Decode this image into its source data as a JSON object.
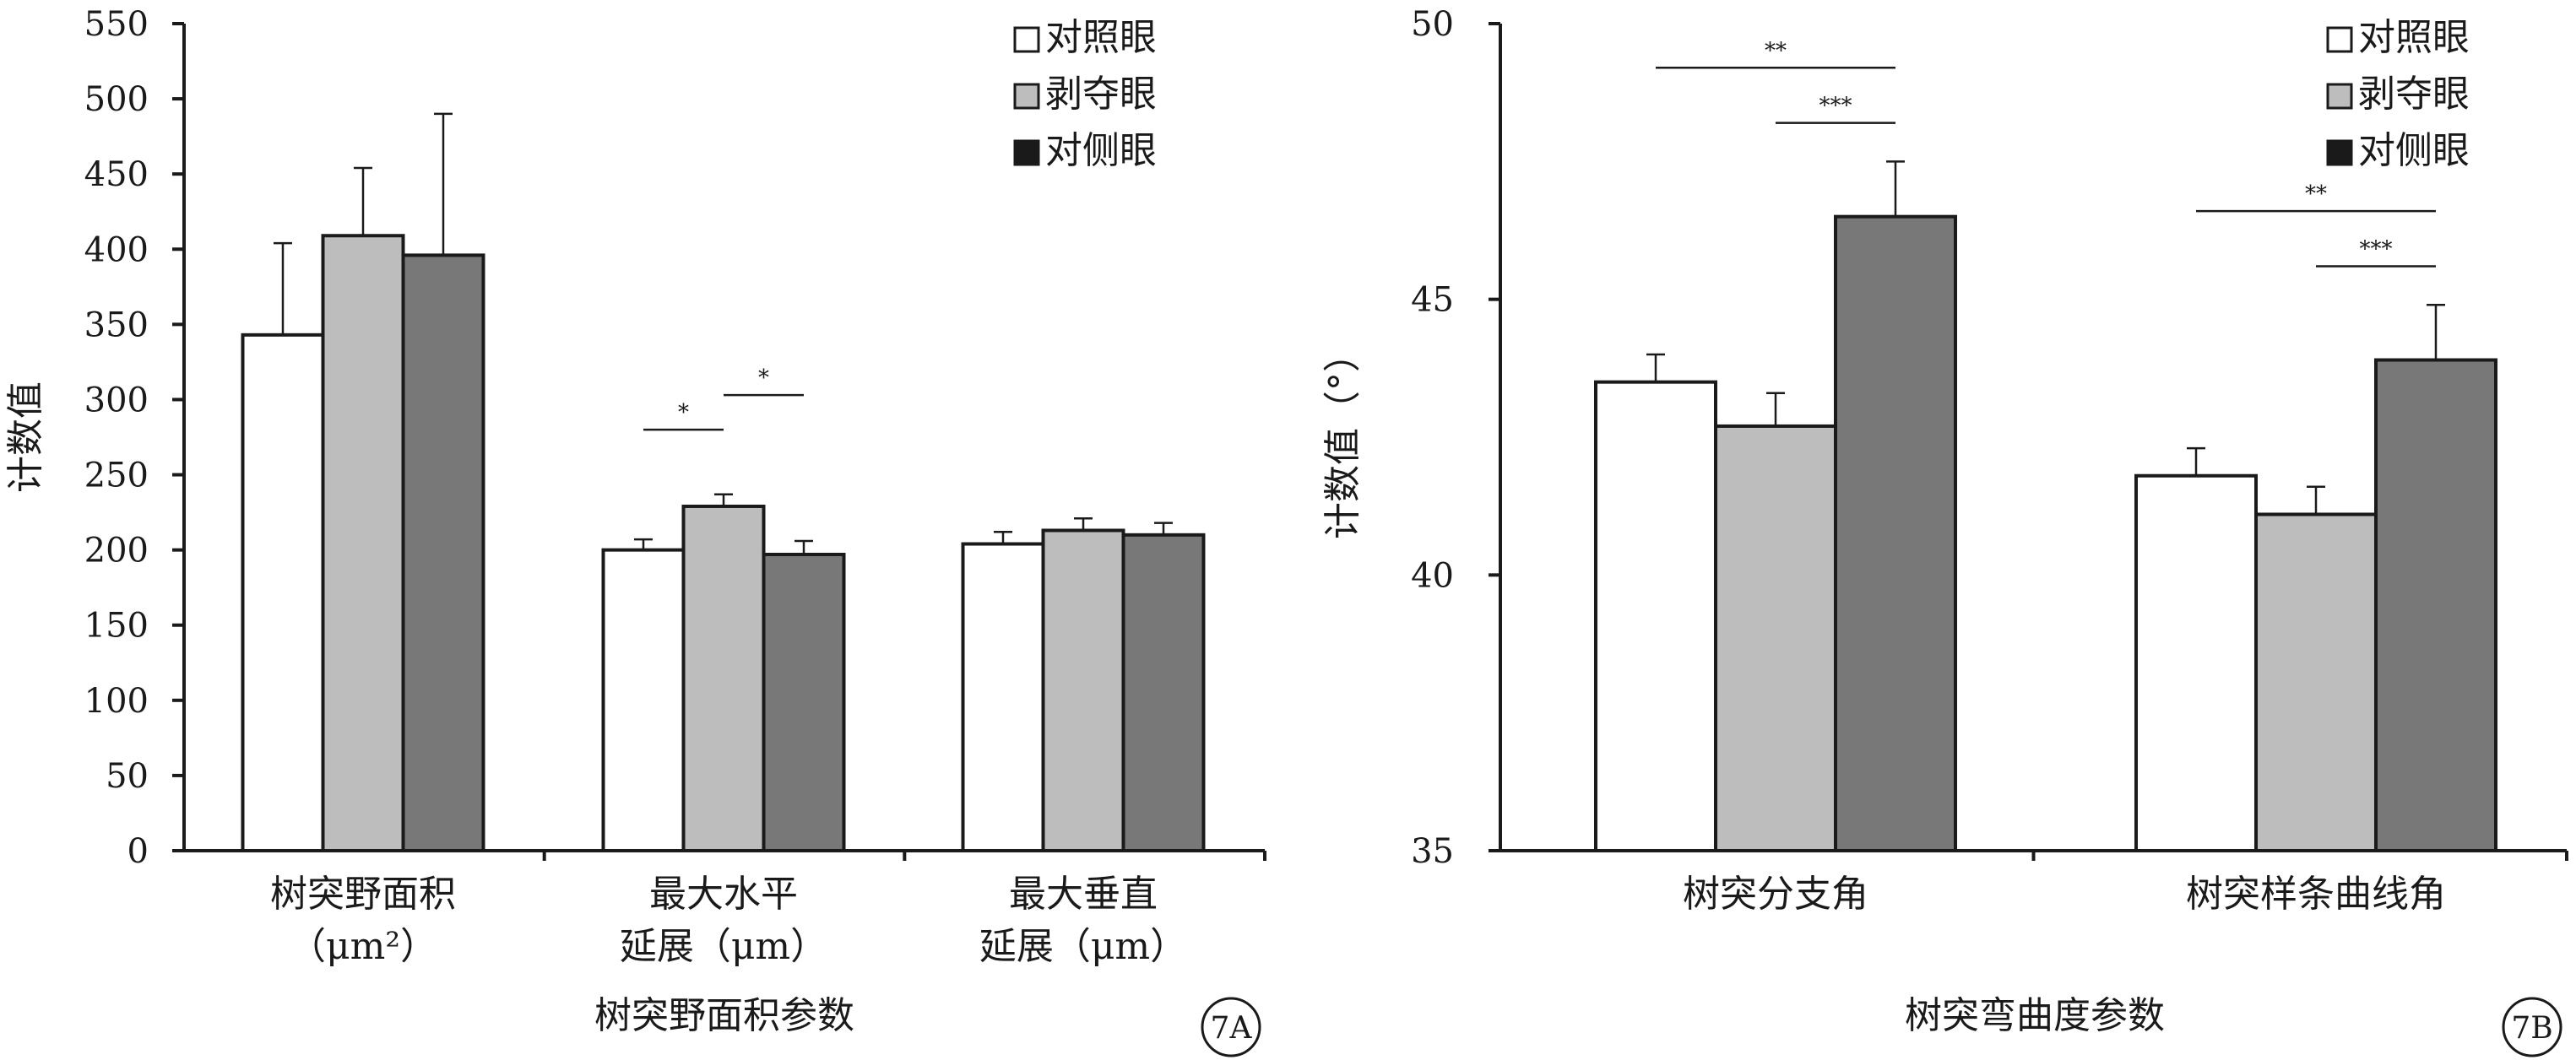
{
  "chart_data": [
    {
      "type": "bar",
      "panel_label": "7A",
      "ylabel": "计数值",
      "xlabel": "树突野面积参数",
      "ylim": [
        0,
        550
      ],
      "ytick_step": 50,
      "yticks": [
        "0",
        "50",
        "100",
        "150",
        "200",
        "250",
        "300",
        "350",
        "400",
        "450",
        "500",
        "550"
      ],
      "categories": [
        [
          "树突野面积",
          "（μm²）"
        ],
        [
          "最大水平",
          "延展（μm）"
        ],
        [
          "最大垂直",
          "延展（μm）"
        ]
      ],
      "series": [
        {
          "name": "对照眼",
          "values": [
            343,
            200,
            204
          ],
          "errors": [
            61,
            7,
            8
          ]
        },
        {
          "name": "剥夺眼",
          "values": [
            409,
            229,
            213
          ],
          "errors": [
            45,
            8,
            8
          ]
        },
        {
          "name": "对侧眼",
          "values": [
            396,
            197,
            210
          ],
          "errors": [
            94,
            9,
            8
          ]
        }
      ],
      "significance": [
        {
          "category": 1,
          "from_series": 0,
          "to_series": 1,
          "label": "*",
          "y": 280
        },
        {
          "category": 1,
          "from_series": 1,
          "to_series": 2,
          "label": "*",
          "y": 303
        }
      ],
      "legend_position": "top-right"
    },
    {
      "type": "bar",
      "panel_label": "7B",
      "ylabel": "计数值（°）",
      "xlabel": "树突弯曲度参数",
      "ylim": [
        35,
        50
      ],
      "ytick_step": 5,
      "yticks": [
        "35",
        "40",
        "45",
        "50"
      ],
      "categories": [
        [
          "树突分支角"
        ],
        [
          "树突样条曲线角"
        ]
      ],
      "series": [
        {
          "name": "对照眼",
          "values": [
            43.5,
            41.8
          ],
          "errors": [
            0.5,
            0.5
          ]
        },
        {
          "name": "剥夺眼",
          "values": [
            42.7,
            41.1
          ],
          "errors": [
            0.6,
            0.5
          ]
        },
        {
          "name": "对侧眼",
          "values": [
            46.5,
            43.9
          ],
          "errors": [
            1.0,
            1.0
          ]
        }
      ],
      "significance": [
        {
          "category": 0,
          "from_series": 0,
          "to_series": 2,
          "label": "**",
          "y": 49.2
        },
        {
          "category": 0,
          "from_series": 1,
          "to_series": 2,
          "label": "***",
          "y": 48.2
        },
        {
          "category": 1,
          "from_series": 0,
          "to_series": 2,
          "label": "**",
          "y": 46.6
        },
        {
          "category": 1,
          "from_series": 1,
          "to_series": 2,
          "label": "***",
          "y": 45.6
        }
      ],
      "legend_position": "top-right"
    }
  ],
  "colors": {
    "对照眼": "#ffffff",
    "剥夺眼": "#bdbdbd",
    "对侧眼": "#787878",
    "legend_对侧眼": "#1a1a1a",
    "axis": "#1a1a1a"
  }
}
